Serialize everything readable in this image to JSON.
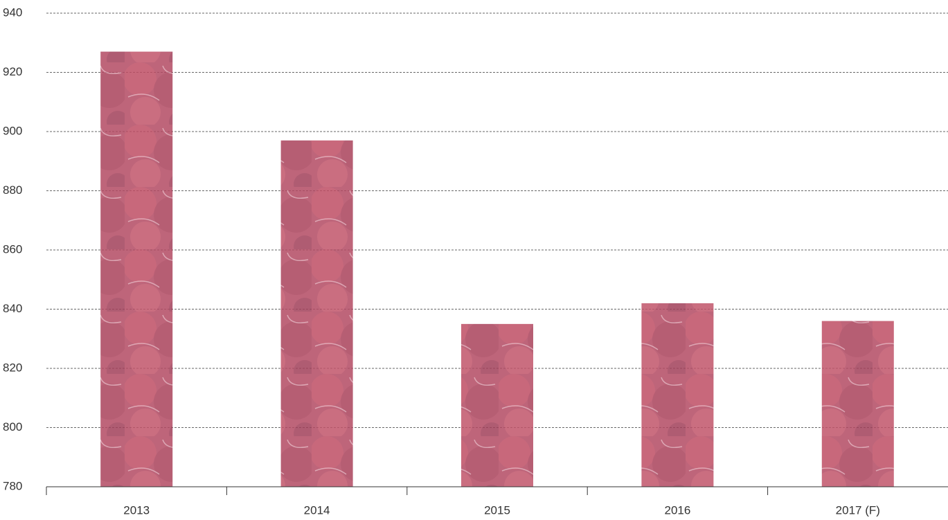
{
  "chart_data": {
    "type": "bar",
    "categories": [
      "2013",
      "2014",
      "2015",
      "2016",
      "2017 (F)"
    ],
    "values": [
      927,
      897,
      835,
      842,
      836
    ],
    "color": "#b24a63",
    "ylim": [
      780,
      940
    ],
    "yticks": [
      780,
      800,
      820,
      840,
      860,
      880,
      900,
      920,
      940
    ],
    "grid": true
  }
}
